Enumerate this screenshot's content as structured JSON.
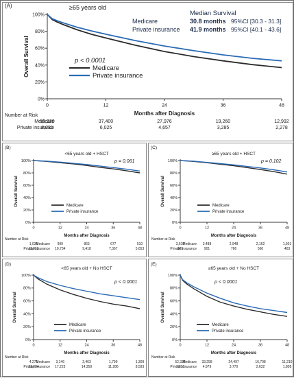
{
  "colors": {
    "medicare": "#2b2b2b",
    "private": "#2a6ab5",
    "axis": "#3a3a3a",
    "text": "#1a1a1a"
  },
  "chart_data": [
    {
      "panel": "(A)",
      "type": "line",
      "title": "≥65 years old",
      "xlabel": "Months after Diagnosis",
      "ylabel": "Overall Survival",
      "xlim": [
        0,
        48
      ],
      "ylim": [
        0,
        100
      ],
      "x_ticks": [
        "0",
        "12",
        "24",
        "36",
        "48"
      ],
      "y_ticks": [
        "0%",
        "20%",
        "40%",
        "60%",
        "80%",
        "100%"
      ],
      "legend": [
        "Medicare",
        "Private insurance"
      ],
      "pvalue": "p < 0.0001",
      "median_survival_header": "Median Survival",
      "median_survival": [
        {
          "group": "Medicare",
          "value": "30.8 months",
          "ci": "95%CI [30.3 - 31.3]"
        },
        {
          "group": "Private insurance",
          "value": "41.9 months",
          "ci": "95%CI [40.1 - 43.6]"
        }
      ],
      "series": [
        {
          "name": "Medicare",
          "x": [
            0,
            1,
            2,
            3,
            6,
            9,
            12,
            18,
            24,
            30,
            36,
            42,
            48
          ],
          "y": [
            100,
            94,
            91,
            88.5,
            82,
            76.5,
            72,
            63.5,
            56,
            50,
            45,
            40.5,
            37
          ]
        },
        {
          "name": "Private insurance",
          "x": [
            0,
            1,
            2,
            3,
            6,
            9,
            12,
            18,
            24,
            30,
            36,
            42,
            48
          ],
          "y": [
            100,
            95,
            92.5,
            90.5,
            85,
            80.5,
            76.5,
            69,
            62.5,
            57,
            52,
            48,
            45
          ]
        }
      ],
      "risk_table": {
        "header": "Number at Risk",
        "columns_x": [
          0,
          12,
          24,
          36,
          48
        ],
        "rows": [
          {
            "label": "Medicare",
            "values": [
              "56,920",
              "37,400",
              "27,976",
              "19,260",
              "12,992"
            ]
          },
          {
            "label": "Private insurance",
            "values": [
              "8,331",
              "6,025",
              "4,657",
              "3,285",
              "2,278"
            ]
          }
        ]
      }
    },
    {
      "panel": "(B)",
      "type": "line",
      "title": "<65 years old + HSCT",
      "xlabel": "Months after Diagnosis",
      "ylabel": "Overall Survival",
      "xlim": [
        0,
        48
      ],
      "ylim": [
        0,
        100
      ],
      "x_ticks": [
        "0",
        "12",
        "24",
        "36",
        "48"
      ],
      "y_ticks": [
        "0%",
        "20%",
        "40%",
        "60%",
        "80%",
        "100%"
      ],
      "legend": [
        "Medicare",
        "Private insurance"
      ],
      "pvalue": "p = 0.061",
      "series": [
        {
          "name": "Medicare",
          "x": [
            0,
            6,
            12,
            18,
            24,
            30,
            36,
            42,
            48
          ],
          "y": [
            100,
            98.5,
            96.5,
            94.5,
            92,
            89,
            86.5,
            83.5,
            80
          ]
        },
        {
          "name": "Private insurance",
          "x": [
            0,
            6,
            12,
            18,
            24,
            30,
            36,
            42,
            48
          ],
          "y": [
            100,
            99,
            97.5,
            95.5,
            93.5,
            91,
            88.5,
            86,
            83
          ]
        }
      ],
      "risk_table": {
        "header": "Number at Risk",
        "columns_x": [
          0,
          12,
          24,
          36,
          48
        ],
        "rows": [
          {
            "label": "Medicare",
            "values": [
              "1,035",
              "999",
              "863",
              "677",
              "510"
            ]
          },
          {
            "label": "Private insurance",
            "values": [
              "11,013",
              "10,734",
              "9,418",
              "7,367",
              "5,653"
            ]
          }
        ]
      }
    },
    {
      "panel": "(C)",
      "type": "line",
      "title": "≥65 years old + HSCT",
      "xlabel": "Months after Diagnosis",
      "ylabel": "Overall Survival",
      "xlim": [
        0,
        48
      ],
      "ylim": [
        0,
        100
      ],
      "x_ticks": [
        "0",
        "12",
        "24",
        "36",
        "48"
      ],
      "y_ticks": [
        "0%",
        "20%",
        "40%",
        "60%",
        "80%",
        "100%"
      ],
      "legend": [
        "Medicare",
        "Private insurance"
      ],
      "pvalue": "p = 0.102",
      "series": [
        {
          "name": "Medicare",
          "x": [
            0,
            6,
            12,
            18,
            24,
            30,
            36,
            42,
            48
          ],
          "y": [
            100,
            98.5,
            96.5,
            94,
            91.5,
            88.5,
            85.5,
            82,
            78
          ]
        },
        {
          "name": "Private insurance",
          "x": [
            0,
            6,
            12,
            18,
            24,
            30,
            36,
            42,
            48
          ],
          "y": [
            100,
            99,
            97,
            95,
            93,
            90.5,
            88,
            85,
            81.5
          ]
        }
      ],
      "risk_table": {
        "header": "Number at Risk",
        "columns_x": [
          0,
          12,
          24,
          36,
          48
        ],
        "rows": [
          {
            "label": "Medicare",
            "values": [
              "3,616",
              "3,488",
              "2,948",
              "2,162",
              "1,501"
            ]
          },
          {
            "label": "Private insurance",
            "values": [
              "929",
              "901",
              "766",
              "560",
              "403"
            ]
          }
        ]
      }
    },
    {
      "panel": "(D)",
      "type": "line",
      "title": "<65 years old + No HSCT",
      "xlabel": "Months after Diagnosis",
      "ylabel": "Overall Survival",
      "xlim": [
        0,
        48
      ],
      "ylim": [
        0,
        100
      ],
      "x_ticks": [
        "0",
        "12",
        "24",
        "36",
        "48"
      ],
      "y_ticks": [
        "0%",
        "20%",
        "40%",
        "60%",
        "80%",
        "100%"
      ],
      "legend": [
        "Medicare",
        "Private insurance"
      ],
      "pvalue": "p < 0.0001",
      "series": [
        {
          "name": "Medicare",
          "x": [
            0,
            2,
            6,
            12,
            18,
            24,
            30,
            36,
            42,
            48
          ],
          "y": [
            100,
            94,
            86,
            77,
            70,
            64,
            59,
            55,
            52,
            48
          ]
        },
        {
          "name": "Private insurance",
          "x": [
            0,
            2,
            6,
            12,
            18,
            24,
            30,
            36,
            42,
            48
          ],
          "y": [
            100,
            96,
            90,
            84,
            79,
            75,
            71,
            68,
            65,
            62
          ]
        }
      ],
      "risk_table": {
        "header": "Number at Risk",
        "columns_x": [
          0,
          12,
          24,
          36,
          48
        ],
        "rows": [
          {
            "label": "Medicare",
            "values": [
              "4,271",
              "3,146",
              "2,463",
              "1,799",
              "1,309"
            ]
          },
          {
            "label": "Private insurance",
            "values": [
              "21,034",
              "17,223",
              "14,359",
              "11,286",
              "8,593"
            ]
          }
        ]
      }
    },
    {
      "panel": "(E)",
      "type": "line",
      "title": "≥65 years old + No HSCT",
      "xlabel": "Months after Diagnosis",
      "ylabel": "Overall Survival",
      "xlim": [
        0,
        48
      ],
      "ylim": [
        0,
        100
      ],
      "x_ticks": [
        "0",
        "12",
        "24",
        "36",
        "48"
      ],
      "y_ticks": [
        "0%",
        "20%",
        "40%",
        "60%",
        "80%",
        "100%"
      ],
      "legend": [
        "Medicare",
        "Private insurance"
      ],
      "pvalue": "p < 0.0001",
      "series": [
        {
          "name": "Medicare",
          "x": [
            0,
            1,
            3,
            6,
            12,
            18,
            24,
            30,
            36,
            42,
            48
          ],
          "y": [
            100,
            92,
            86,
            79,
            67,
            58,
            52,
            47,
            43,
            39,
            36
          ]
        },
        {
          "name": "Private insurance",
          "x": [
            0,
            1,
            3,
            6,
            12,
            18,
            24,
            30,
            36,
            42,
            48
          ],
          "y": [
            100,
            93,
            88,
            82,
            72,
            64,
            57,
            52,
            48,
            45,
            42
          ]
        }
      ],
      "risk_table": {
        "header": "Number at Risk",
        "columns_x": [
          0,
          12,
          24,
          36,
          48
        ],
        "rows": [
          {
            "label": "Medicare",
            "values": [
              "52,335",
              "33,258",
              "24,497",
              "16,708",
              "11,210"
            ]
          },
          {
            "label": "Private insurance",
            "values": [
              "7,210",
              "4,979",
              "3,770",
              "2,632",
              "1,808"
            ]
          }
        ]
      }
    }
  ]
}
